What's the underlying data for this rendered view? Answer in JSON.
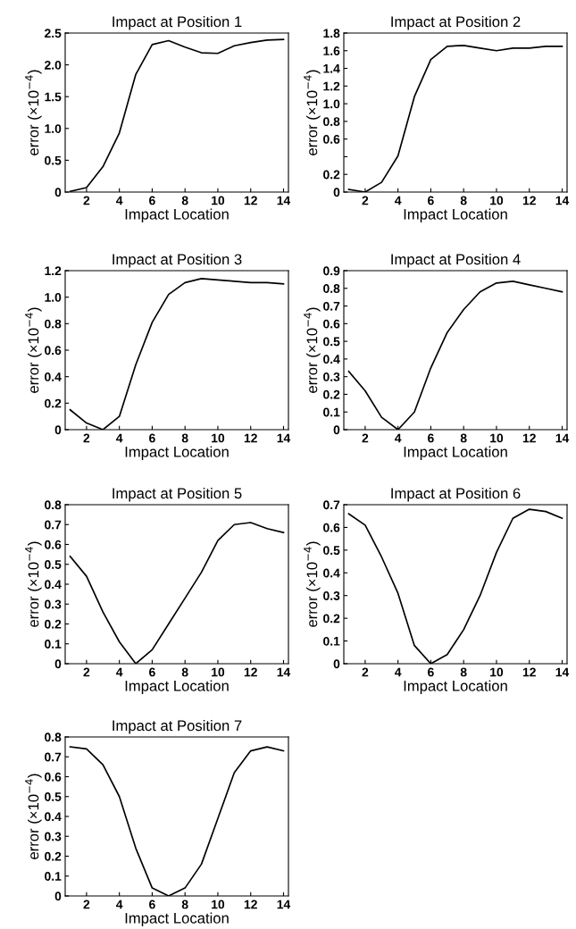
{
  "chart_data": [
    {
      "type": "line",
      "title": "Impact at Position 1",
      "xlabel": "Impact Location",
      "ylabel": "error (×10$^{−4}$)",
      "x": [
        1,
        2,
        3,
        4,
        5,
        6,
        7,
        8,
        9,
        10,
        11,
        12,
        13,
        14
      ],
      "xlim": [
        0.7,
        14.3
      ],
      "xticks": [
        2,
        4,
        6,
        8,
        10,
        12,
        14
      ],
      "ylim": [
        0,
        2.5
      ],
      "yticks": [
        0,
        {
          "value": 0.5,
          "label": "0.5"
        },
        {
          "value": 1.0,
          "label": "1.0"
        },
        {
          "value": 1.5,
          "label": "1.5"
        },
        {
          "value": 2.0,
          "label": "2.0"
        },
        {
          "value": 2.5,
          "label": "2.5"
        }
      ],
      "series": [
        {
          "color": "#000000",
          "values": [
            0.01,
            0.07,
            0.4,
            0.93,
            1.85,
            2.32,
            2.38,
            2.28,
            2.19,
            2.18,
            2.3,
            2.35,
            2.39,
            2.4
          ]
        }
      ]
    },
    {
      "type": "line",
      "title": "Impact at Position 2",
      "xlabel": "Impact Location",
      "ylabel": "error (×10$^{−4}$)",
      "x": [
        1,
        2,
        3,
        4,
        5,
        6,
        7,
        8,
        9,
        10,
        11,
        12,
        13,
        14
      ],
      "xlim": [
        0.7,
        14.3
      ],
      "xticks": [
        2,
        4,
        6,
        8,
        10,
        12,
        14
      ],
      "ylim": [
        0,
        1.8
      ],
      "yticks": [
        0,
        {
          "value": 0.2,
          "label": "0.2"
        },
        {
          "value": 0.4,
          "label": null
        },
        {
          "value": 0.6,
          "label": "0.6"
        },
        {
          "value": 0.8,
          "label": "0.8"
        },
        {
          "value": 1.0,
          "label": "1.0"
        },
        {
          "value": 1.2,
          "label": "1.2"
        },
        {
          "value": 1.4,
          "label": "1.4"
        },
        {
          "value": 1.6,
          "label": "1.6"
        },
        {
          "value": 1.8,
          "label": "1.8"
        }
      ],
      "series": [
        {
          "color": "#000000",
          "values": [
            0.03,
            0.0,
            0.11,
            0.41,
            1.08,
            1.5,
            1.65,
            1.66,
            1.63,
            1.6,
            1.63,
            1.63,
            1.65,
            1.65
          ]
        }
      ]
    },
    {
      "type": "line",
      "title": "Impact at Position 3",
      "xlabel": "Impact Location",
      "ylabel": "error (×10$^{−4}$)",
      "x": [
        1,
        2,
        3,
        4,
        5,
        6,
        7,
        8,
        9,
        10,
        11,
        12,
        13,
        14
      ],
      "xlim": [
        0.7,
        14.3
      ],
      "xticks": [
        2,
        4,
        6,
        8,
        10,
        12,
        14
      ],
      "ylim": [
        0,
        1.2
      ],
      "yticks": [
        0,
        0.2,
        0.4,
        0.6,
        0.8,
        {
          "value": 1.0,
          "label": "1.0"
        },
        1.2
      ],
      "series": [
        {
          "color": "#000000",
          "values": [
            0.15,
            0.05,
            0.0,
            0.1,
            0.49,
            0.81,
            1.02,
            1.11,
            1.14,
            1.13,
            1.12,
            1.11,
            1.11,
            1.1
          ]
        }
      ]
    },
    {
      "type": "line",
      "title": "Impact at Position 4",
      "xlabel": "Impact Location",
      "ylabel": "error (×10$^{−4}$)",
      "x": [
        1,
        2,
        3,
        4,
        5,
        6,
        7,
        8,
        9,
        10,
        11,
        12,
        13,
        14
      ],
      "xlim": [
        0.7,
        14.3
      ],
      "xticks": [
        2,
        4,
        6,
        8,
        10,
        12,
        14
      ],
      "ylim": [
        0,
        0.9
      ],
      "yticks": [
        0,
        0.1,
        0.2,
        0.3,
        0.4,
        0.5,
        0.6,
        0.7,
        0.8,
        0.9
      ],
      "series": [
        {
          "color": "#000000",
          "values": [
            0.33,
            0.22,
            0.07,
            0.0,
            0.1,
            0.35,
            0.55,
            0.68,
            0.78,
            0.83,
            0.84,
            0.82,
            0.8,
            0.78
          ]
        }
      ]
    },
    {
      "type": "line",
      "title": "Impact at Position 5",
      "xlabel": "Impact Location",
      "ylabel": "error (×10$^{−4}$)",
      "x": [
        1,
        2,
        3,
        4,
        5,
        6,
        7,
        8,
        9,
        10,
        11,
        12,
        13,
        14
      ],
      "xlim": [
        0.7,
        14.3
      ],
      "xticks": [
        2,
        4,
        6,
        8,
        10,
        12,
        14
      ],
      "ylim": [
        0,
        0.8
      ],
      "yticks": [
        0,
        0.1,
        0.2,
        0.3,
        0.4,
        0.5,
        0.6,
        0.7,
        0.8
      ],
      "series": [
        {
          "color": "#000000",
          "values": [
            0.54,
            0.44,
            0.26,
            0.11,
            0.0,
            0.07,
            0.2,
            0.33,
            0.46,
            0.62,
            0.7,
            0.71,
            0.68,
            0.66
          ]
        }
      ]
    },
    {
      "type": "line",
      "title": "Impact at Position 6",
      "xlabel": "Impact Location",
      "ylabel": "error (×10$^{−4}$)",
      "x": [
        1,
        2,
        3,
        4,
        5,
        6,
        7,
        8,
        9,
        10,
        11,
        12,
        13,
        14
      ],
      "xlim": [
        0.7,
        14.3
      ],
      "xticks": [
        2,
        4,
        6,
        8,
        10,
        12,
        14
      ],
      "ylim": [
        0,
        0.7
      ],
      "yticks": [
        0,
        0.1,
        0.2,
        0.3,
        0.4,
        0.5,
        0.6,
        0.7
      ],
      "series": [
        {
          "color": "#000000",
          "values": [
            0.66,
            0.61,
            0.47,
            0.31,
            0.08,
            0.0,
            0.04,
            0.15,
            0.3,
            0.49,
            0.64,
            0.68,
            0.67,
            0.64
          ]
        }
      ]
    },
    {
      "type": "line",
      "title": "Impact at Position 7",
      "xlabel": "Impact Location",
      "ylabel": "error (×10$^{−4}$)",
      "x": [
        1,
        2,
        3,
        4,
        5,
        6,
        7,
        8,
        9,
        10,
        11,
        12,
        13,
        14
      ],
      "xlim": [
        0.7,
        14.3
      ],
      "xticks": [
        2,
        4,
        6,
        8,
        10,
        12,
        14
      ],
      "ylim": [
        0,
        0.8
      ],
      "yticks": [
        0,
        0.1,
        0.2,
        0.3,
        0.4,
        0.5,
        0.6,
        0.7,
        0.8
      ],
      "series": [
        {
          "color": "#000000",
          "values": [
            0.75,
            0.74,
            0.66,
            0.5,
            0.24,
            0.04,
            0.0,
            0.04,
            0.16,
            0.39,
            0.62,
            0.73,
            0.75,
            0.73
          ]
        }
      ]
    }
  ]
}
